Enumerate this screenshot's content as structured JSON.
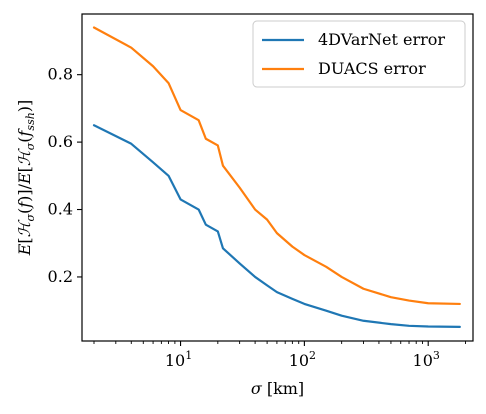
{
  "chart_data": {
    "type": "line",
    "xscale": "log",
    "xlim": [
      1.6,
      2300
    ],
    "ylim": [
      0.01,
      0.98
    ],
    "xlabel": "σ [km]",
    "ylabel": "E[ℋσ(f)]/E[ℋσ(fssh)]",
    "xlabel_parts": {
      "symbol": "σ",
      "unit": " [km]"
    },
    "ylabel_parts": {
      "E": "E",
      "H": "ℋ",
      "sigma": "σ",
      "f": "f",
      "ssh": "ssh",
      "sep": "/"
    },
    "xticks": [
      {
        "value": 10,
        "base": "10",
        "exp": "1"
      },
      {
        "value": 100,
        "base": "10",
        "exp": "2"
      },
      {
        "value": 1000,
        "base": "10",
        "exp": "3"
      }
    ],
    "yticks": [
      {
        "value": 0.2,
        "label": "0.2"
      },
      {
        "value": 0.4,
        "label": "0.4"
      },
      {
        "value": 0.6,
        "label": "0.6"
      },
      {
        "value": 0.8,
        "label": "0.8"
      }
    ],
    "legend_position": "top-right",
    "grid": false,
    "series": [
      {
        "name": "4DVarNet error",
        "color": "#1f77b4",
        "x": [
          2,
          4,
          6,
          8,
          10,
          14,
          16,
          20,
          22,
          30,
          40,
          50,
          60,
          80,
          100,
          150,
          200,
          300,
          500,
          700,
          1000,
          1800
        ],
        "y": [
          0.65,
          0.595,
          0.54,
          0.5,
          0.43,
          0.4,
          0.355,
          0.335,
          0.285,
          0.24,
          0.2,
          0.175,
          0.155,
          0.135,
          0.12,
          0.1,
          0.085,
          0.07,
          0.06,
          0.055,
          0.053,
          0.052
        ]
      },
      {
        "name": "DUACS error",
        "color": "#ff7f0e",
        "x": [
          2,
          4,
          6,
          8,
          10,
          14,
          16,
          20,
          22,
          30,
          40,
          50,
          60,
          80,
          100,
          150,
          200,
          300,
          500,
          700,
          1000,
          1800
        ],
        "y": [
          0.94,
          0.88,
          0.825,
          0.775,
          0.695,
          0.665,
          0.61,
          0.59,
          0.53,
          0.465,
          0.4,
          0.37,
          0.33,
          0.29,
          0.265,
          0.23,
          0.2,
          0.165,
          0.14,
          0.13,
          0.122,
          0.12
        ]
      }
    ]
  }
}
